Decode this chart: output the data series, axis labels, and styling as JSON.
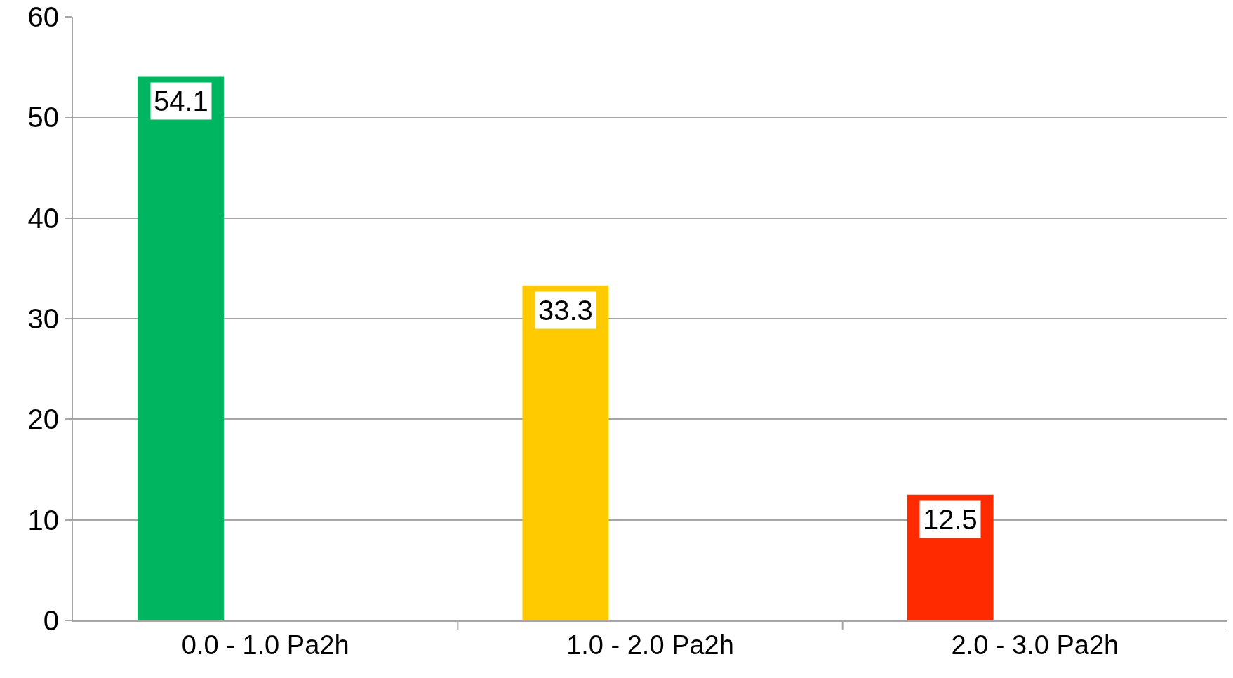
{
  "chart_data": {
    "type": "bar",
    "categories": [
      "0.0 - 1.0 Pa2h",
      "1.0 - 2.0 Pa2h",
      "2.0 - 3.0 Pa2h"
    ],
    "values": [
      54.1,
      33.3,
      12.5
    ],
    "colors": [
      "#00b55f",
      "#ffcb00",
      "#ff2a00"
    ],
    "ylim": [
      0,
      60
    ],
    "yticks": [
      0,
      10,
      20,
      30,
      40,
      50,
      60
    ],
    "grid": "y",
    "data_labels": true,
    "legend": false
  }
}
